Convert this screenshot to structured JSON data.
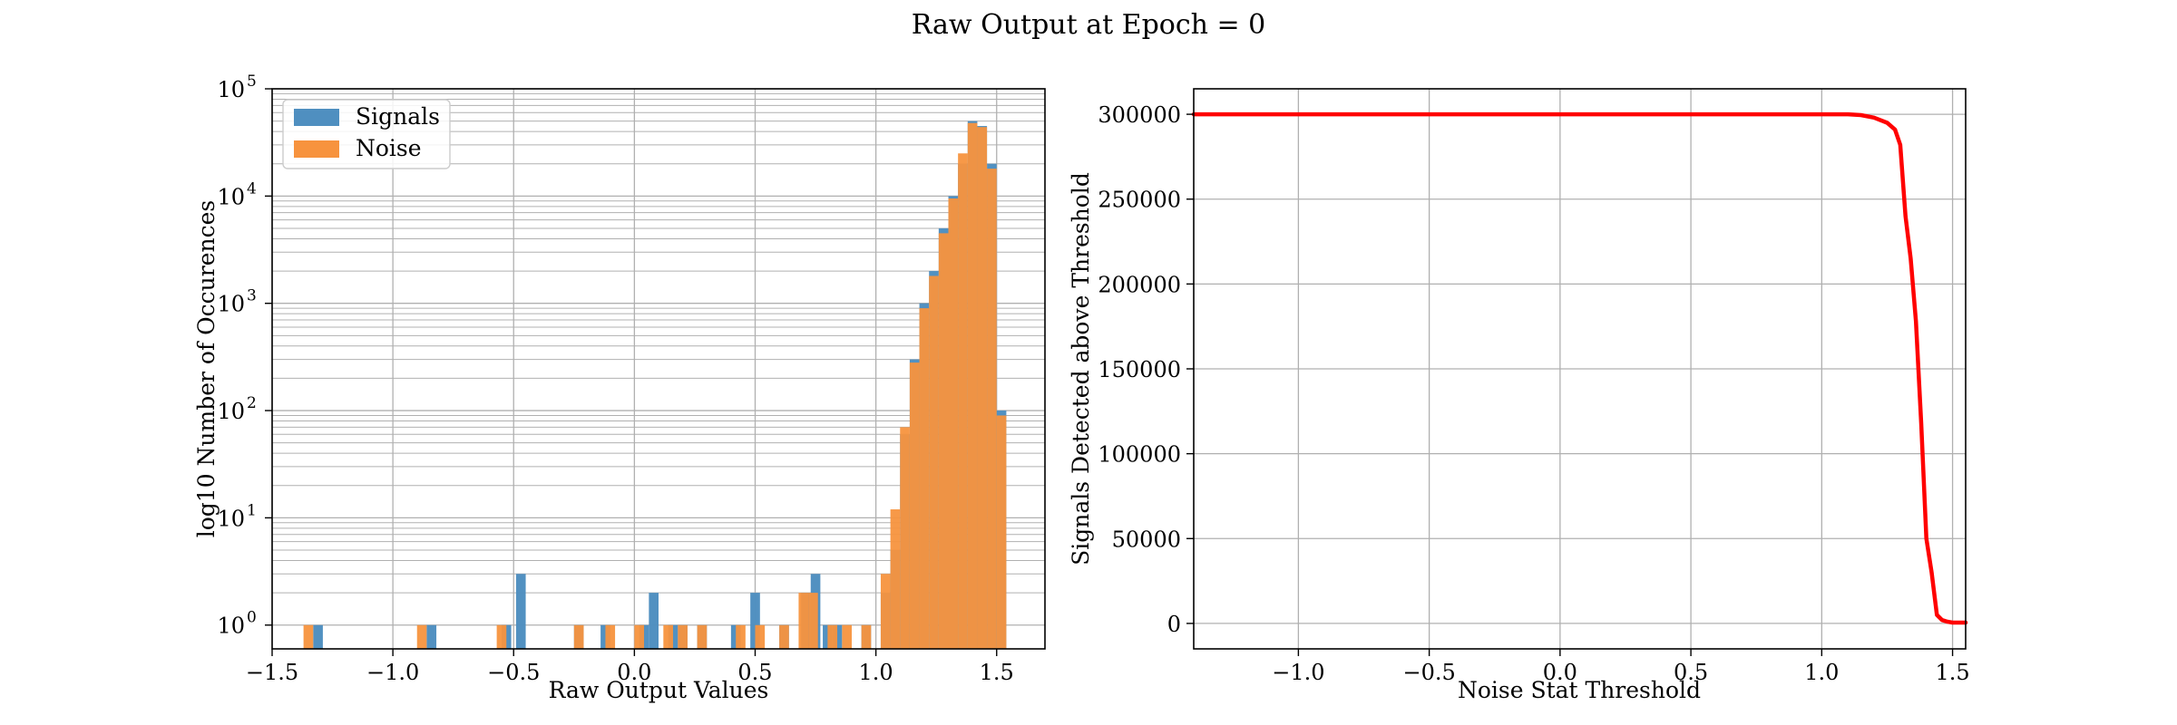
{
  "figure": {
    "suptitle": "Raw Output at Epoch = 0"
  },
  "chart_data": [
    {
      "type": "bar",
      "subtype": "histogram",
      "xlabel": "Raw Output Values",
      "ylabel": "log10 Number of Occurences",
      "xlim": [
        -1.5,
        1.7
      ],
      "ylim": [
        0.6,
        100000
      ],
      "yscale": "log",
      "grid": true,
      "grid_minor": true,
      "legend_position": "top-left",
      "xticks": [
        -1.5,
        -1.0,
        -0.5,
        0.0,
        0.5,
        1.0,
        1.5
      ],
      "xtick_labels": [
        "−1.5",
        "−1.0",
        "−0.5",
        "0.0",
        "0.5",
        "1.0",
        "1.5"
      ],
      "yticks": [
        1,
        10,
        100,
        1000,
        10000,
        100000
      ],
      "ytick_labels": [
        {
          "base": "10",
          "exp": "0"
        },
        {
          "base": "10",
          "exp": "1"
        },
        {
          "base": "10",
          "exp": "2"
        },
        {
          "base": "10",
          "exp": "3"
        },
        {
          "base": "10",
          "exp": "4"
        },
        {
          "base": "10",
          "exp": "5"
        }
      ],
      "bin_width": 0.04,
      "series": [
        {
          "name": "Signals",
          "color": "#4f8fc0",
          "bins": [
            [
              -1.33,
              1
            ],
            [
              -0.86,
              1
            ],
            [
              -0.55,
              1
            ],
            [
              -0.49,
              3
            ],
            [
              -0.25,
              1
            ],
            [
              -0.14,
              1
            ],
            [
              0.02,
              1
            ],
            [
              0.06,
              2
            ],
            [
              0.14,
              1
            ],
            [
              0.18,
              1
            ],
            [
              0.26,
              1
            ],
            [
              0.4,
              1
            ],
            [
              0.48,
              2
            ],
            [
              0.6,
              1
            ],
            [
              0.69,
              2
            ],
            [
              0.73,
              3
            ],
            [
              0.78,
              1
            ],
            [
              0.82,
              1
            ],
            [
              0.94,
              1
            ],
            [
              1.02,
              2
            ],
            [
              1.06,
              5
            ],
            [
              1.1,
              60
            ],
            [
              1.14,
              300
            ],
            [
              1.18,
              1000
            ],
            [
              1.22,
              2000
            ],
            [
              1.26,
              5000
            ],
            [
              1.3,
              10000
            ],
            [
              1.34,
              20000
            ],
            [
              1.38,
              50000
            ],
            [
              1.42,
              45000
            ],
            [
              1.46,
              20000
            ],
            [
              1.5,
              100
            ]
          ]
        },
        {
          "name": "Noise",
          "color": "#f7933e",
          "bins": [
            [
              -1.37,
              1
            ],
            [
              -0.9,
              1
            ],
            [
              -0.57,
              1
            ],
            [
              -0.25,
              1
            ],
            [
              -0.12,
              1
            ],
            [
              0.0,
              1
            ],
            [
              0.12,
              1
            ],
            [
              0.18,
              1
            ],
            [
              0.26,
              1
            ],
            [
              0.42,
              1
            ],
            [
              0.5,
              1
            ],
            [
              0.6,
              1
            ],
            [
              0.68,
              2
            ],
            [
              0.72,
              2
            ],
            [
              0.8,
              1
            ],
            [
              0.86,
              1
            ],
            [
              0.94,
              1
            ],
            [
              1.02,
              3
            ],
            [
              1.06,
              12
            ],
            [
              1.1,
              70
            ],
            [
              1.14,
              280
            ],
            [
              1.18,
              900
            ],
            [
              1.22,
              1800
            ],
            [
              1.26,
              4500
            ],
            [
              1.3,
              9500
            ],
            [
              1.34,
              25000
            ],
            [
              1.38,
              48000
            ],
            [
              1.42,
              44000
            ],
            [
              1.46,
              18000
            ],
            [
              1.5,
              90
            ]
          ]
        }
      ]
    },
    {
      "type": "line",
      "xlabel": "Noise Stat Threshold",
      "ylabel": "Signals Detected above Threshold",
      "xlim": [
        -1.4,
        1.55
      ],
      "ylim": [
        -15000,
        315000
      ],
      "grid": true,
      "xticks": [
        -1.0,
        -0.5,
        0.0,
        0.5,
        1.0,
        1.5
      ],
      "xtick_labels": [
        "−1.0",
        "−0.5",
        "0.0",
        "0.5",
        "1.0",
        "1.5"
      ],
      "yticks": [
        0,
        50000,
        100000,
        150000,
        200000,
        250000,
        300000
      ],
      "ytick_labels": [
        "0",
        "50000",
        "100000",
        "150000",
        "200000",
        "250000",
        "300000"
      ],
      "series": [
        {
          "color": "#ff0000",
          "x": [
            -1.4,
            1.0,
            1.1,
            1.15,
            1.2,
            1.25,
            1.28,
            1.3,
            1.32,
            1.34,
            1.36,
            1.38,
            1.4,
            1.42,
            1.44,
            1.46,
            1.48,
            1.5,
            1.55
          ],
          "y": [
            300000,
            300000,
            300000,
            299500,
            298000,
            295000,
            291000,
            282000,
            240000,
            215000,
            178000,
            118000,
            50000,
            30000,
            5000,
            2000,
            1000,
            500,
            500
          ]
        }
      ]
    }
  ]
}
